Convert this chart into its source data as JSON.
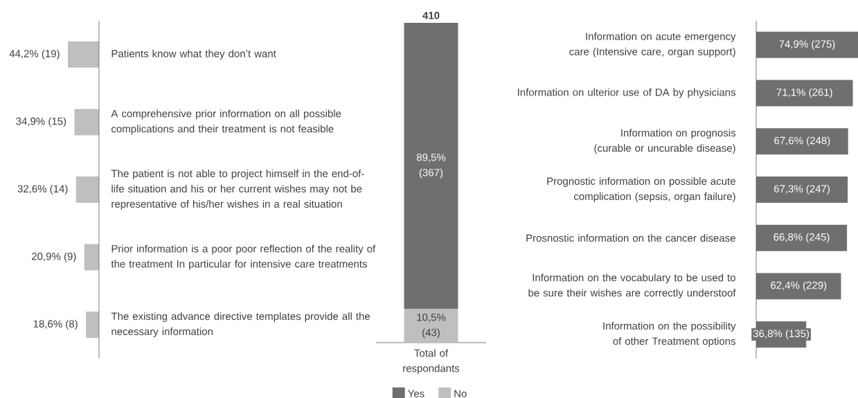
{
  "chart_data": [
    {
      "type": "bar",
      "orientation": "horizontal",
      "color": "#bfbfbf",
      "categories": [
        "Patients know what they don’t want",
        "A comprehensive prior information on all possible complications and their treatment is not feasible",
        "The patient is not able to project himself in the end-of-life situation and his or her current wishes may not be representative of his/her wishes in a real situation",
        "Prior information is a poor poor reflection of the reality of the treatment In particular for intensive care treatments",
        "The existing advance directive templates provide all the necessary information"
      ],
      "values": [
        44.2,
        34.9,
        32.6,
        20.9,
        18.6
      ],
      "value_labels": [
        "44,2% (19)",
        "34,9% (15)",
        "32,6% (14)",
        "20,9% (9)",
        "18,6% (8)"
      ]
    },
    {
      "type": "bar",
      "stacked": true,
      "categories": [
        "Total of respondants"
      ],
      "legend": "bottom",
      "series": [
        {
          "name": "No",
          "color": "#bfbfbf",
          "values": [
            43
          ],
          "value_labels": [
            "10,5% (43)"
          ]
        },
        {
          "name": "Yes",
          "color": "#6f6f6f",
          "values": [
            367
          ],
          "value_labels": [
            "89,5% (367)"
          ]
        }
      ],
      "totals": [
        "410"
      ]
    },
    {
      "type": "bar",
      "orientation": "horizontal",
      "color": "#6f6f6f",
      "categories": [
        "Information on acute emergency care (Intensive care, organ support)",
        "Information on ulterior use of DA by physicians",
        "Information on prognosis (curable or uncurable disease)",
        "Prognostic information on possible acute complication (sepsis, organ failure)",
        "Prosnostic information on the cancer disease",
        "Information on the vocabulary to be used to be sure their wishes are correctly understoof",
        "Information on the possibility of other Treatment options"
      ],
      "values": [
        74.9,
        71.1,
        67.6,
        67.3,
        66.8,
        62.4,
        36.8
      ],
      "value_labels": [
        "74,9% (275)",
        "71,1% (261)",
        "67,6% (248)",
        "67,3% (247)",
        "66,8% (245)",
        "62,4% (229)",
        "36,8% (135)"
      ]
    }
  ]
}
